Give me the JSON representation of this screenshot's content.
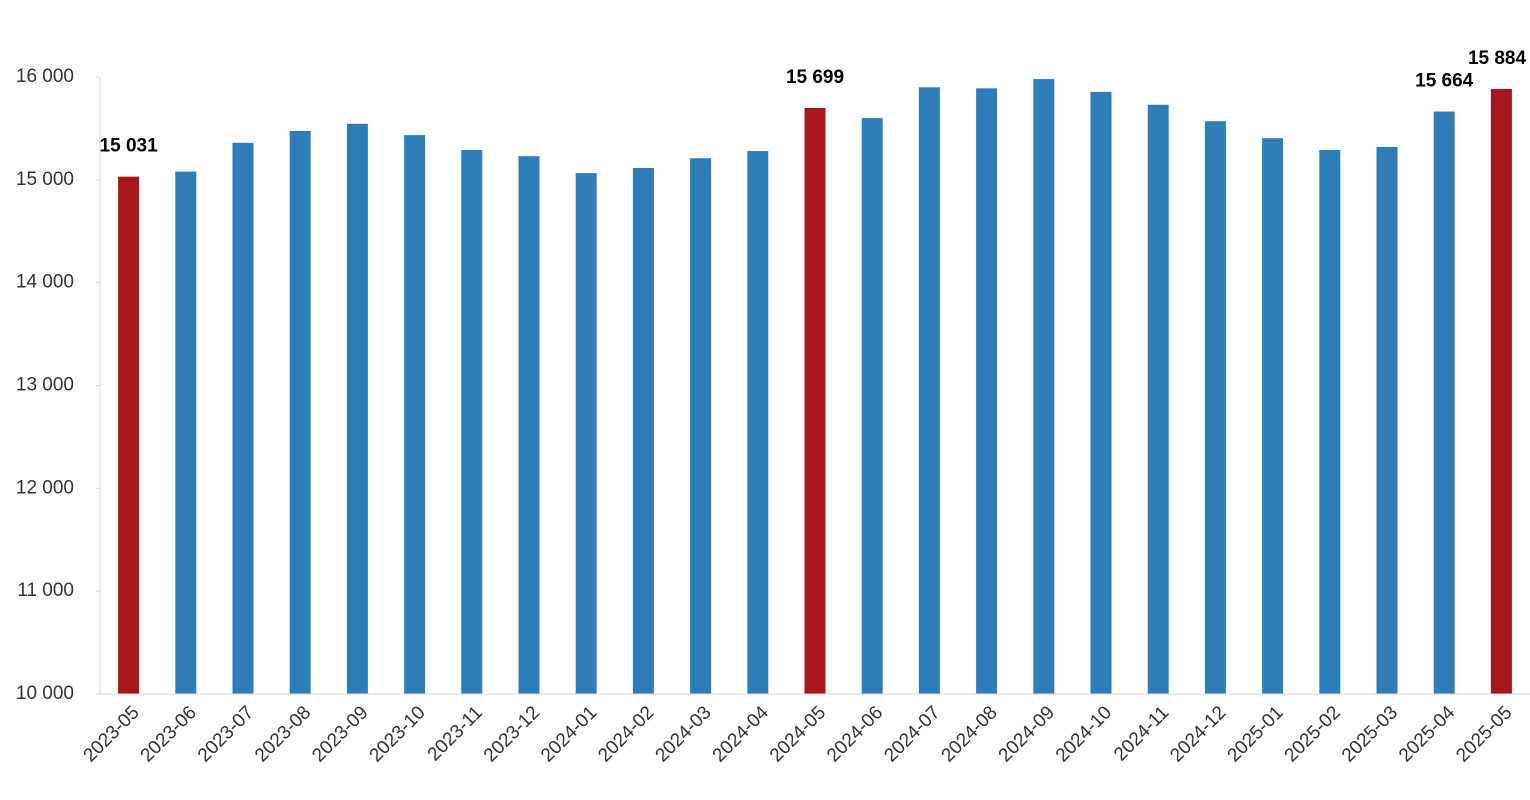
{
  "chart_data": {
    "type": "bar",
    "categories": [
      "2023-05",
      "2023-06",
      "2023-07",
      "2023-08",
      "2023-09",
      "2023-10",
      "2023-11",
      "2023-12",
      "2024-01",
      "2024-02",
      "2024-03",
      "2024-04",
      "2024-05",
      "2024-06",
      "2024-07",
      "2024-08",
      "2024-09",
      "2024-10",
      "2024-11",
      "2024-12",
      "2025-01",
      "2025-02",
      "2025-03",
      "2025-04",
      "2025-05"
    ],
    "values": [
      15031,
      15080,
      15360,
      15475,
      15545,
      15435,
      15290,
      15230,
      15065,
      15115,
      15210,
      15280,
      15699,
      15600,
      15900,
      15890,
      15980,
      15855,
      15730,
      15570,
      15405,
      15290,
      15320,
      15664,
      15884
    ],
    "value_labels": [
      "15 031",
      null,
      null,
      null,
      null,
      null,
      null,
      null,
      null,
      null,
      null,
      null,
      "15 699",
      null,
      null,
      null,
      null,
      null,
      null,
      null,
      null,
      null,
      null,
      "15 664",
      "15 884"
    ],
    "colors": [
      "#a8161d",
      "#2e7db8",
      "#2e7db8",
      "#2e7db8",
      "#2e7db8",
      "#2e7db8",
      "#2e7db8",
      "#2e7db8",
      "#2e7db8",
      "#2e7db8",
      "#2e7db8",
      "#2e7db8",
      "#a8161d",
      "#2e7db8",
      "#2e7db8",
      "#2e7db8",
      "#2e7db8",
      "#2e7db8",
      "#2e7db8",
      "#2e7db8",
      "#2e7db8",
      "#2e7db8",
      "#2e7db8",
      "#2e7db8",
      "#a8161d"
    ],
    "ylim": [
      10000,
      16000
    ],
    "yticks": [
      {
        "value": 10000,
        "label": "10 000"
      },
      {
        "value": 11000,
        "label": "11 000"
      },
      {
        "value": 12000,
        "label": "12 000"
      },
      {
        "value": 13000,
        "label": "13 000"
      },
      {
        "value": 14000,
        "label": "14 000"
      },
      {
        "value": 15000,
        "label": "15 000"
      },
      {
        "value": 16000,
        "label": "16 000"
      }
    ],
    "grid": false
  }
}
